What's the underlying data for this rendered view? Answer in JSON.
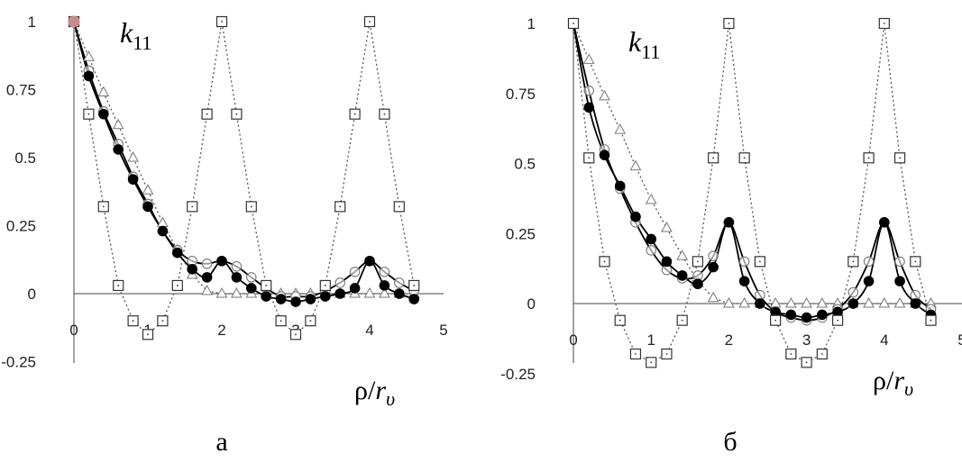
{
  "chart_data": [
    {
      "type": "line",
      "panel_label": "а",
      "corner_label": {
        "main": "k",
        "sub": "11"
      },
      "xlabel": {
        "main": "ρ/",
        "italic": "r",
        "sub": "υ"
      },
      "xlim": [
        0,
        5
      ],
      "ylim": [
        -0.25,
        1
      ],
      "x_ticks": [
        "0",
        "1",
        "2",
        "3",
        "4",
        "5"
      ],
      "y_ticks": [
        "1",
        "0.75",
        "0.5",
        "0.25",
        "0",
        "-0.25"
      ],
      "series": [
        {
          "marker": "square",
          "line": "dotted",
          "x": [
            0,
            0.2,
            0.4,
            0.6,
            0.8,
            1.0,
            1.2,
            1.4,
            1.6,
            1.8,
            2.0,
            2.2,
            2.4,
            2.6,
            2.8,
            3.0,
            3.2,
            3.4,
            3.6,
            3.8,
            4.0,
            4.2,
            4.4,
            4.6
          ],
          "y": [
            1,
            0.66,
            0.32,
            0.03,
            -0.1,
            -0.15,
            -0.1,
            0.03,
            0.32,
            0.66,
            1,
            0.66,
            0.32,
            0.03,
            -0.1,
            -0.15,
            -0.1,
            0.03,
            0.32,
            0.66,
            1,
            0.66,
            0.32,
            0.03
          ]
        },
        {
          "marker": "triangle",
          "line": "dotted",
          "x": [
            0,
            0.2,
            0.4,
            0.6,
            0.8,
            1.0,
            1.2,
            1.4,
            1.6,
            1.8,
            2.0,
            2.2,
            2.4,
            2.6,
            2.8,
            3.0,
            3.2,
            3.4,
            3.6,
            3.8,
            4.0,
            4.2,
            4.4,
            4.6
          ],
          "y": [
            1,
            0.87,
            0.74,
            0.62,
            0.5,
            0.38,
            0.26,
            0.16,
            0.07,
            0.01,
            0,
            0,
            0,
            0,
            0,
            0,
            0,
            0,
            0,
            0,
            0,
            0,
            0,
            0
          ]
        },
        {
          "marker": "circle-open",
          "line": "solid",
          "x": [
            0,
            0.2,
            0.4,
            0.6,
            0.8,
            1.0,
            1.2,
            1.4,
            1.6,
            1.8,
            2.0,
            2.2,
            2.4,
            2.6,
            2.8,
            3.0,
            3.2,
            3.4,
            3.6,
            3.8,
            4.0,
            4.2,
            4.4,
            4.6
          ],
          "y": [
            1,
            0.82,
            0.67,
            0.55,
            0.43,
            0.33,
            0.23,
            0.16,
            0.12,
            0.11,
            0.12,
            0.1,
            0.06,
            0.02,
            -0.01,
            -0.01,
            -0.01,
            0.01,
            0.04,
            0.08,
            0.12,
            0.08,
            0.04,
            0.01
          ]
        },
        {
          "marker": "circle-filled",
          "line": "solid",
          "x": [
            0,
            0.2,
            0.4,
            0.6,
            0.8,
            1.0,
            1.2,
            1.4,
            1.6,
            1.8,
            2.0,
            2.2,
            2.4,
            2.6,
            2.8,
            3.0,
            3.2,
            3.4,
            3.6,
            3.8,
            4.0,
            4.2,
            4.4,
            4.6
          ],
          "y": [
            1,
            0.8,
            0.66,
            0.53,
            0.42,
            0.32,
            0.23,
            0.15,
            0.09,
            0.06,
            0.12,
            0.06,
            0.02,
            -0.01,
            -0.02,
            -0.03,
            -0.02,
            -0.01,
            0,
            0.02,
            0.12,
            0.03,
            0,
            -0.02
          ]
        }
      ]
    },
    {
      "type": "line",
      "panel_label": "б",
      "corner_label": {
        "main": "k",
        "sub": "11"
      },
      "xlabel": {
        "main": "ρ/",
        "italic": "r",
        "sub": "υ"
      },
      "xlim": [
        0,
        5
      ],
      "ylim": [
        -0.25,
        1
      ],
      "x_ticks": [
        "0",
        "1",
        "2",
        "3",
        "4",
        "5"
      ],
      "y_ticks": [
        "1",
        "0.75",
        "0.5",
        "0.25",
        "0",
        "-0.25"
      ],
      "series": [
        {
          "marker": "square",
          "line": "dotted",
          "x": [
            0,
            0.2,
            0.4,
            0.6,
            0.8,
            1.0,
            1.2,
            1.4,
            1.6,
            1.8,
            2.0,
            2.2,
            2.4,
            2.6,
            2.8,
            3.0,
            3.2,
            3.4,
            3.6,
            3.8,
            4.0,
            4.2,
            4.4,
            4.6
          ],
          "y": [
            1,
            0.52,
            0.15,
            -0.06,
            -0.18,
            -0.21,
            -0.18,
            -0.06,
            0.15,
            0.52,
            1,
            0.52,
            0.15,
            -0.06,
            -0.18,
            -0.21,
            -0.18,
            -0.06,
            0.15,
            0.52,
            1,
            0.52,
            0.15,
            -0.06
          ]
        },
        {
          "marker": "triangle",
          "line": "dotted",
          "x": [
            0,
            0.2,
            0.4,
            0.6,
            0.8,
            1.0,
            1.2,
            1.4,
            1.6,
            1.8,
            2.0,
            2.2,
            2.4,
            2.6,
            2.8,
            3.0,
            3.2,
            3.4,
            3.6,
            3.8,
            4.0,
            4.2,
            4.4,
            4.6
          ],
          "y": [
            1,
            0.87,
            0.74,
            0.62,
            0.49,
            0.37,
            0.27,
            0.17,
            0.08,
            0.02,
            0,
            0,
            0,
            0,
            0,
            0,
            0,
            0,
            0,
            0,
            0,
            0,
            0,
            0
          ]
        },
        {
          "marker": "circle-open",
          "line": "solid",
          "x": [
            0,
            0.2,
            0.4,
            0.6,
            0.8,
            1.0,
            1.2,
            1.4,
            1.6,
            1.8,
            2.0,
            2.2,
            2.4,
            2.6,
            2.8,
            3.0,
            3.2,
            3.4,
            3.6,
            3.8,
            4.0,
            4.2,
            4.4,
            4.6
          ],
          "y": [
            1,
            0.76,
            0.55,
            0.41,
            0.29,
            0.19,
            0.12,
            0.09,
            0.1,
            0.17,
            0.29,
            0.15,
            0.03,
            -0.03,
            -0.05,
            -0.06,
            -0.05,
            -0.02,
            0.04,
            0.15,
            0.29,
            0.15,
            0.03,
            -0.02
          ]
        },
        {
          "marker": "circle-filled",
          "line": "solid",
          "x": [
            0,
            0.2,
            0.4,
            0.6,
            0.8,
            1.0,
            1.2,
            1.4,
            1.6,
            1.8,
            2.0,
            2.2,
            2.4,
            2.6,
            2.8,
            3.0,
            3.2,
            3.4,
            3.6,
            3.8,
            4.0,
            4.2,
            4.4,
            4.6
          ],
          "y": [
            1,
            0.7,
            0.53,
            0.42,
            0.31,
            0.23,
            0.15,
            0.1,
            0.07,
            0.13,
            0.29,
            0.08,
            0,
            -0.03,
            -0.04,
            -0.05,
            -0.04,
            -0.03,
            0,
            0.08,
            0.29,
            0.08,
            0,
            -0.04
          ]
        }
      ]
    }
  ]
}
